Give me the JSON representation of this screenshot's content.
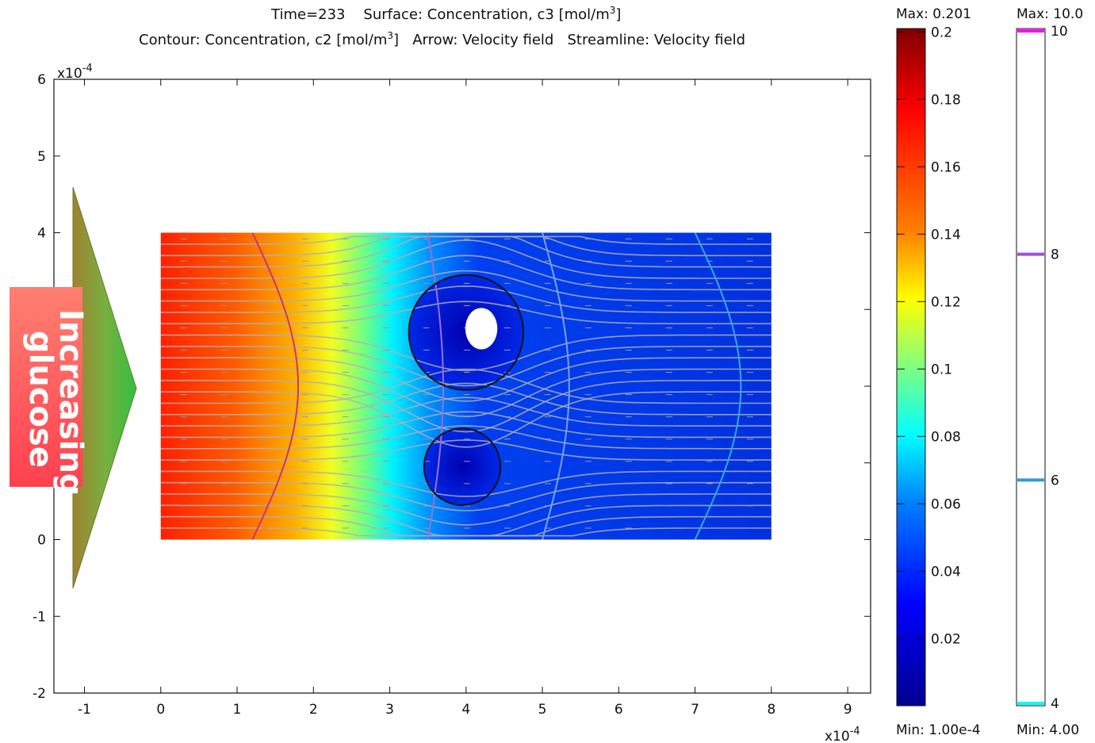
{
  "chart_data": {
    "type": "heatmap",
    "title_line1": {
      "time": "Time=233",
      "surface": "Surface: Concentration, c3 [mol/m",
      "surface_sup": "3",
      "surface_end": "]"
    },
    "title_line2": {
      "contour": "Contour: Concentration, c2 [mol/m",
      "contour_sup": "3",
      "contour_end": "]",
      "arrow": "Arrow: Velocity field",
      "streamline": "Streamline: Velocity field"
    },
    "x_axis": {
      "range": [
        -1.4,
        9.3
      ],
      "ticks": [
        -1,
        0,
        1,
        2,
        3,
        4,
        5,
        6,
        7,
        8,
        9
      ],
      "tick_labels": [
        "-1",
        "0",
        "1",
        "2",
        "3",
        "4",
        "5",
        "6",
        "7",
        "8",
        "9"
      ],
      "multiplier": "x10",
      "multiplier_exp": "-4"
    },
    "y_axis": {
      "range": [
        -2,
        6
      ],
      "ticks": [
        -2,
        -1,
        0,
        1,
        2,
        3,
        4,
        5,
        6
      ],
      "tick_labels": [
        "-2",
        "-1",
        "0",
        "1",
        "2",
        "3",
        "4",
        "5",
        "6"
      ],
      "multiplier": "x10",
      "multiplier_exp": "-4"
    },
    "domain": {
      "x": [
        0,
        8
      ],
      "y": [
        0,
        4
      ]
    },
    "obstacles": [
      {
        "shape": "ellipse",
        "cx": 4.2,
        "cy": 2.75,
        "rx": 0.21,
        "ry": 0.27
      }
    ],
    "surface_colorbar": {
      "max_label": "Max: 0.201",
      "min_label": "Min: 1.00e-4",
      "max": 0.201,
      "min": 0.0001,
      "ticks": [
        0.2,
        0.18,
        0.16,
        0.14,
        0.12,
        0.1,
        0.08,
        0.06,
        0.04,
        0.02
      ],
      "tick_labels": [
        "0.2",
        "0.18",
        "0.16",
        "0.14",
        "0.12",
        "0.1",
        "0.08",
        "0.06",
        "0.04",
        "0.02"
      ],
      "colormap": [
        "#7f0000",
        "#ff0000",
        "#ff8000",
        "#ffff00",
        "#80ff80",
        "#00ffff",
        "#0080ff",
        "#0000ff",
        "#00008f"
      ]
    },
    "contour_colorbar": {
      "max_label": "Max: 10.0",
      "min_label": "Min: 4.00",
      "max": 10,
      "min": 4,
      "levels": [
        {
          "value": 10,
          "label": "10",
          "color": "#ff00ff"
        },
        {
          "value": 8,
          "label": "8",
          "color": "#a050e0"
        },
        {
          "value": 6,
          "label": "6",
          "color": "#3399dd"
        },
        {
          "value": 4,
          "label": "4",
          "color": "#00ffff"
        }
      ]
    },
    "annotation": {
      "line1": "Increasing",
      "line2": "glucose"
    }
  }
}
